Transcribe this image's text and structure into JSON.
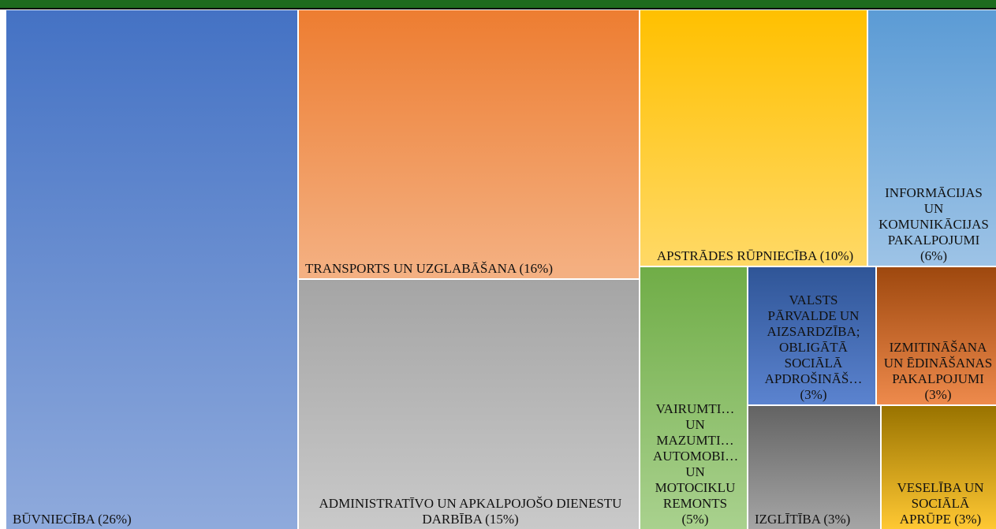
{
  "chart_data": {
    "type": "treemap",
    "categories": [
      "BŪVNIECĪBA",
      "TRANSPORTS UN UZGLABĀŠANA",
      "ADMINISTRATĪVO UN APKALPOJOŠO DIENESTU DARBĪBA",
      "APSTRĀDES RŪPNIECĪBA",
      "INFORMĀCIJAS UN KOMUNIKĀCIJAS PAKALPOJUMI",
      "VAIRUMTI… UN MAZUMTI… AUTOMOBI… UN MOTOCIKLU REMONTS",
      "VALSTS PĀRVALDE UN AIZSARDZĪBA; OBLIGĀTĀ SOCIĀLĀ APDROŠINĀŠ…",
      "IZMITINĀŠANA UN ĒDINĀŠANAS PAKALPOJUMI",
      "IZGLĪTĪBA",
      "VESELĪBA UN SOCIĀLĀ APRŪPE"
    ],
    "values": [
      26,
      16,
      15,
      10,
      6,
      5,
      3,
      3,
      3,
      3
    ],
    "value_labels": [
      "(26%)",
      "(16%)",
      "(15%)",
      "(10%)",
      "(6%)",
      "(5%)",
      "(3%)",
      "(3%)",
      "(3%)",
      "(3%)"
    ],
    "colors": [
      [
        "#4472c4",
        "#8faadc"
      ],
      [
        "#ed7d31",
        "#f4b183"
      ],
      [
        "#a5a5a5",
        "#c9c9c9"
      ],
      [
        "#ffc000",
        "#ffd966"
      ],
      [
        "#5b9bd5",
        "#9dc3e6"
      ],
      [
        "#70ad47",
        "#a9d18e"
      ],
      [
        "#2f5597",
        "#5b83cf"
      ],
      [
        "#9e480e",
        "#ee8a4c"
      ],
      [
        "#636363",
        "#a5a5a5"
      ],
      [
        "#997300",
        "#ffc833"
      ]
    ]
  }
}
